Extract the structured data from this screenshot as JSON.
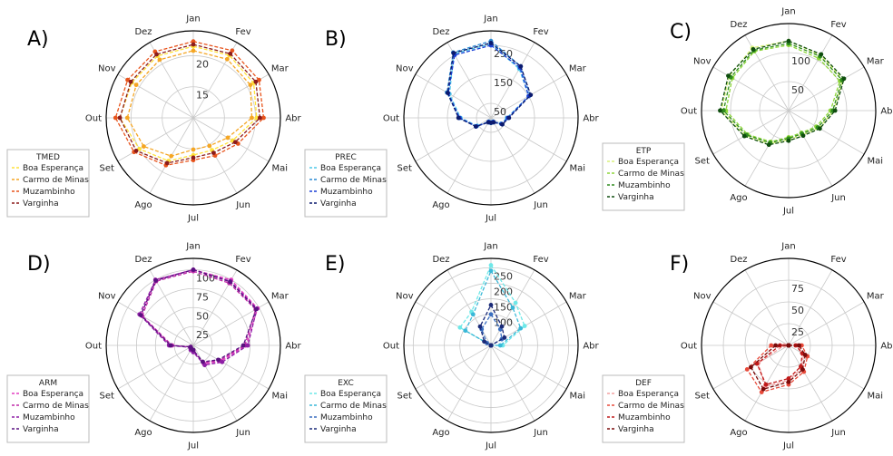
{
  "months": [
    "Jan",
    "Fev",
    "Mar",
    "Abr",
    "Mai",
    "Jun",
    "Jul",
    "Ago",
    "Set",
    "Out",
    "Nov",
    "Dez"
  ],
  "series_names": [
    "Boa Esperança",
    "Carmo de Minas",
    "Muzambinho",
    "Varginha"
  ],
  "chart_data": [
    {
      "type": "radar",
      "panel": "A)",
      "legend_title": "TMED",
      "rlim": [
        10,
        24
      ],
      "rticks": [
        15,
        20
      ],
      "legend_position": "lower-left",
      "colors": [
        "#ffe23a",
        "#f5a623",
        "#e8541c",
        "#8b1c1c"
      ],
      "series": [
        {
          "name": "Boa Esperança",
          "values": [
            21.5,
            21.6,
            21.2,
            20.2,
            17.3,
            16.0,
            16.0,
            18.0,
            20.0,
            21.8,
            21.4,
            21.5
          ]
        },
        {
          "name": "Carmo de Minas",
          "values": [
            20.8,
            20.9,
            20.6,
            19.4,
            16.4,
            15.2,
            15.1,
            17.1,
            19.2,
            20.6,
            20.6,
            20.8
          ]
        },
        {
          "name": "Muzambinho",
          "values": [
            22.3,
            22.5,
            22.2,
            21.3,
            18.3,
            17.0,
            16.8,
            18.8,
            21.0,
            22.5,
            22.2,
            22.3
          ]
        },
        {
          "name": "Varginha",
          "values": [
            21.8,
            21.9,
            21.6,
            20.7,
            17.8,
            16.5,
            16.4,
            18.4,
            20.6,
            21.8,
            21.6,
            21.8
          ]
        }
      ]
    },
    {
      "type": "radar",
      "panel": "B)",
      "legend_title": "PREC",
      "rlim": [
        0,
        300
      ],
      "rticks": [
        50,
        150,
        250
      ],
      "legend_position": "lower-left",
      "colors": [
        "#4fc9e8",
        "#2a8ad4",
        "#1a3fd6",
        "#0b1a6e"
      ],
      "series": [
        {
          "name": "Boa Esperança",
          "values": [
            255,
            195,
            150,
            55,
            40,
            15,
            15,
            15,
            55,
            105,
            165,
            255
          ]
        },
        {
          "name": "Carmo de Minas",
          "values": [
            265,
            205,
            155,
            60,
            45,
            18,
            18,
            18,
            60,
            110,
            175,
            260
          ]
        },
        {
          "name": "Muzambinho",
          "values": [
            250,
            200,
            150,
            58,
            42,
            16,
            16,
            16,
            58,
            108,
            170,
            250
          ]
        },
        {
          "name": "Varginha",
          "values": [
            258,
            205,
            158,
            62,
            45,
            18,
            17,
            18,
            60,
            112,
            172,
            258
          ]
        }
      ]
    },
    {
      "type": "radar",
      "panel": "C)",
      "legend_title": "ETP",
      "rlim": [
        0,
        150
      ],
      "rticks": [
        50,
        100
      ],
      "legend_position": "lower-left",
      "colors": [
        "#d8f07a",
        "#8ed63a",
        "#2e8b1e",
        "#0e4d0e"
      ],
      "series": [
        {
          "name": "Boa Esperança",
          "values": [
            120,
            110,
            108,
            78,
            60,
            48,
            50,
            66,
            86,
            116,
            118,
            125
          ]
        },
        {
          "name": "Carmo de Minas",
          "values": [
            113,
            104,
            102,
            72,
            55,
            44,
            46,
            62,
            82,
            108,
            112,
            118
          ]
        },
        {
          "name": "Muzambinho",
          "values": [
            116,
            108,
            106,
            76,
            58,
            46,
            48,
            64,
            84,
            112,
            115,
            120
          ]
        },
        {
          "name": "Varginha",
          "values": [
            120,
            112,
            110,
            80,
            62,
            50,
            52,
            68,
            88,
            118,
            120,
            122
          ]
        }
      ]
    },
    {
      "type": "radar",
      "panel": "D)",
      "legend_title": "ARM",
      "rlim": [
        0,
        115
      ],
      "rticks": [
        25,
        50,
        75,
        100
      ],
      "legend_position": "lower-left",
      "colors": [
        "#e43ec0",
        "#c02aa8",
        "#8e1fa6",
        "#5a1080"
      ],
      "series": [
        {
          "name": "Boa Esperança",
          "values": [
            100,
            100,
            98,
            70,
            42,
            28,
            8,
            6,
            4,
            30,
            80,
            100
          ]
        },
        {
          "name": "Carmo de Minas",
          "values": [
            98,
            95,
            95,
            68,
            40,
            26,
            7,
            5,
            4,
            28,
            78,
            98
          ]
        },
        {
          "name": "Muzambinho",
          "values": [
            100,
            98,
            97,
            72,
            44,
            30,
            9,
            7,
            5,
            32,
            82,
            100
          ]
        },
        {
          "name": "Varginha",
          "values": [
            100,
            97,
            96,
            66,
            38,
            25,
            6,
            5,
            4,
            30,
            80,
            99
          ]
        }
      ]
    },
    {
      "type": "radar",
      "panel": "E)",
      "legend_title": "EXC",
      "rlim": [
        0,
        280
      ],
      "rticks": [
        100,
        150,
        200,
        250
      ],
      "legend_position": "lower-left",
      "colors": [
        "#6ee8e8",
        "#3ab8d8",
        "#3a6ec0",
        "#1a2a78"
      ],
      "series": [
        {
          "name": "Boa Esperança",
          "values": [
            258,
            158,
            125,
            38,
            0,
            0,
            0,
            0,
            0,
            0,
            115,
            125
          ]
        },
        {
          "name": "Carmo de Minas",
          "values": [
            240,
            140,
            110,
            30,
            0,
            0,
            0,
            0,
            0,
            0,
            95,
            115
          ]
        },
        {
          "name": "Muzambinho",
          "values": [
            100,
            60,
            40,
            0,
            0,
            0,
            0,
            0,
            0,
            0,
            15,
            60
          ]
        },
        {
          "name": "Varginha",
          "values": [
            130,
            70,
            50,
            0,
            0,
            0,
            0,
            0,
            0,
            0,
            25,
            70
          ]
        }
      ]
    },
    {
      "type": "radar",
      "panel": "F)",
      "legend_title": "DEF",
      "rlim": [
        0,
        100
      ],
      "rticks": [
        25,
        50,
        75
      ],
      "legend_position": "lower-left",
      "colors": [
        "#f4a0a0",
        "#e84a3a",
        "#c01a1a",
        "#7a0a0a"
      ],
      "series": [
        {
          "name": "Boa Esperança",
          "values": [
            0,
            0,
            0,
            10,
            20,
            30,
            40,
            55,
            40,
            5,
            0,
            0
          ]
        },
        {
          "name": "Carmo de Minas",
          "values": [
            0,
            0,
            0,
            15,
            25,
            35,
            45,
            62,
            55,
            20,
            0,
            0
          ]
        },
        {
          "name": "Muzambinho",
          "values": [
            0,
            0,
            0,
            8,
            18,
            28,
            38,
            52,
            42,
            10,
            0,
            0
          ]
        },
        {
          "name": "Varginha",
          "values": [
            0,
            0,
            0,
            12,
            22,
            32,
            42,
            58,
            50,
            15,
            0,
            0
          ]
        }
      ]
    }
  ]
}
